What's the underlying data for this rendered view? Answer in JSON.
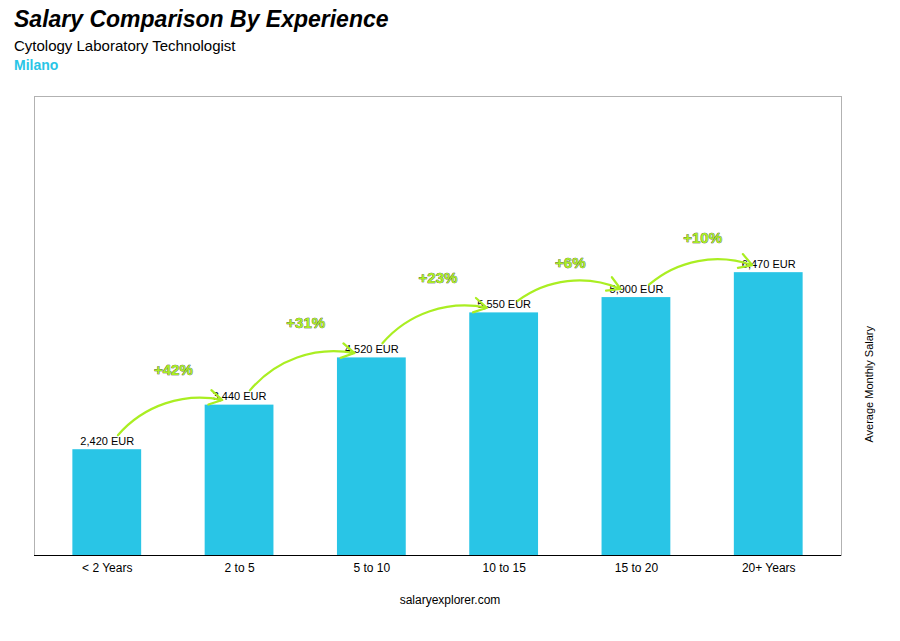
{
  "chart_data": {
    "type": "bar",
    "title": "Salary Comparison By Experience",
    "subtitle": [
      "Cytology Laboratory Technologist",
      "Milano"
    ],
    "y_label": "Average Monthly Salary",
    "caption": "salaryexplorer.com",
    "categories": [
      "< 2 Years",
      "2 to 5",
      "5 to 10",
      "10 to 15",
      "15 to 20",
      "20+ Years"
    ],
    "values": [
      2420,
      3440,
      4520,
      5550,
      5900,
      6470
    ],
    "value_labels": [
      "2,420 EUR",
      "3,440 EUR",
      "4,520 EUR",
      "5,550 EUR",
      "5,900 EUR",
      "6,470 EUR"
    ],
    "data_labels": true,
    "color": "#29c5e6",
    "ylim": [
      0,
      10500
    ],
    "tick_labels": "x",
    "grid": false,
    "annotations": [
      {
        "text": "+42%",
        "from": "< 2 Years",
        "to": "2 to 5",
        "color": "#aaee22"
      },
      {
        "text": "+31%",
        "from": "2 to 5",
        "to": "5 to 10",
        "color": "#aaee22"
      },
      {
        "text": "+23%",
        "from": "5 to 10",
        "to": "10 to 15",
        "color": "#aaee22"
      },
      {
        "text": "+6%",
        "from": "10 to 15",
        "to": "15 to 20",
        "color": "#aaee22"
      },
      {
        "text": "+10%",
        "from": "15 to 20",
        "to": "20+ Years",
        "color": "#aaee22"
      }
    ]
  }
}
